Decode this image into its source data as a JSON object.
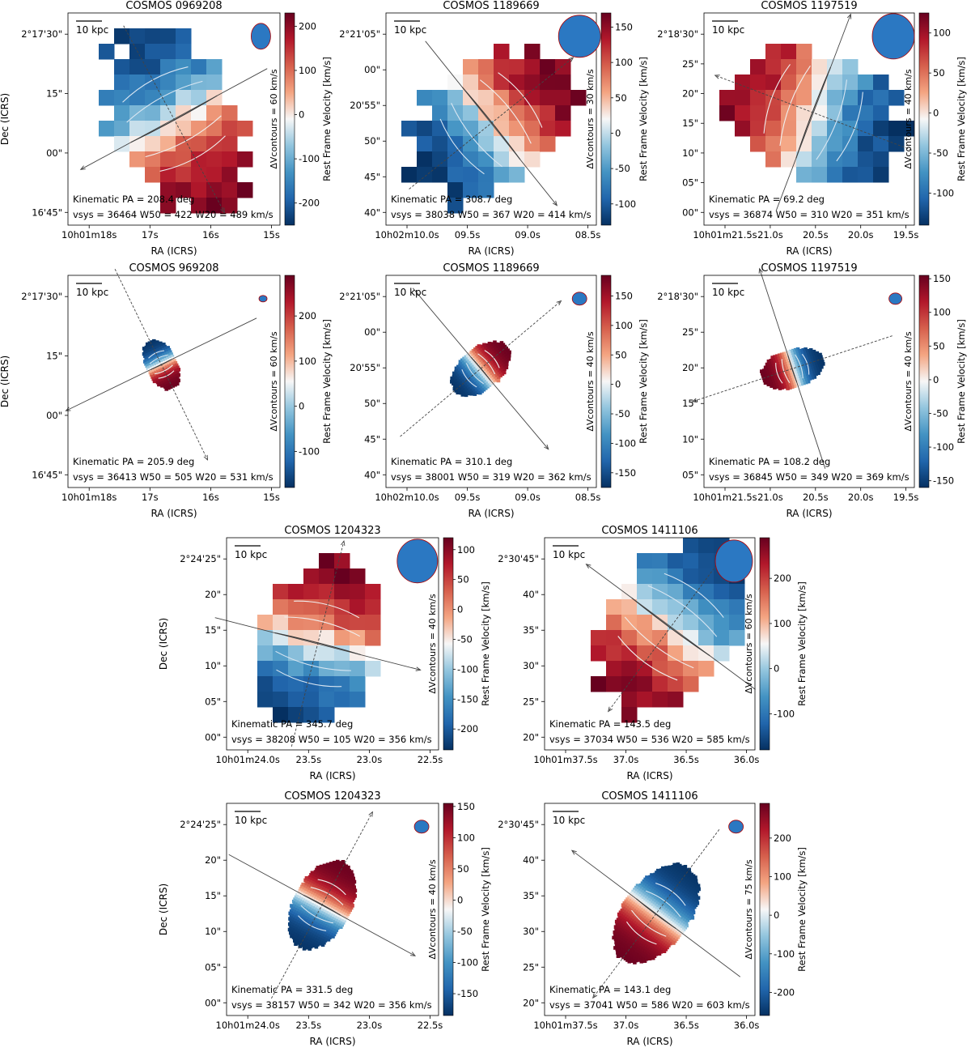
{
  "figure": {
    "colors": {
      "map_low": "#08306b",
      "map_mid": "#f7f7f7",
      "map_high": "#67001f",
      "beam": "#2b78c2",
      "beam_edge": "#b00000"
    },
    "ylabel": "Dec (ICRS)",
    "xlabel": "RA (ICRS)",
    "cbar_label": "Rest Frame Velocity [km/s]",
    "scalebar_label": "10 kpc"
  },
  "chart_data": [
    {
      "type": "heatmap",
      "title": "COSMOS 0969208",
      "kind": "pixel",
      "yticks": [
        "2°17'30\"",
        "15\"",
        "00\"",
        "16'45\""
      ],
      "xticks": [
        "10h01m18s",
        "17s",
        "16s",
        "15s"
      ],
      "cbar_ticks": [
        200,
        100,
        0,
        -100,
        -200
      ],
      "vmin": -250,
      "vmax": 230,
      "contour_label": "ΔVcontours = 60 km/s",
      "pa_label": "Kinematic PA = 208.4 deg",
      "stats_label": "vsys = 36464  W50 = 422  W20 = 489 km/s",
      "kinematic_pa_deg": 208.4,
      "v_sys_kms": 36464,
      "w50_kms": 422,
      "w20_kms": 489
    },
    {
      "type": "heatmap",
      "title": "COSMOS 1189669",
      "kind": "pixel",
      "yticks": [
        "2°21'05\"",
        "00\"",
        "20'55\"",
        "50\"",
        "45\"",
        "40\""
      ],
      "xticks": [
        "10h02m10.0s",
        "09.5s",
        "09.0s",
        "08.5s"
      ],
      "cbar_ticks": [
        150,
        100,
        50,
        0,
        -50,
        -100
      ],
      "vmin": -130,
      "vmax": 170,
      "contour_label": "ΔVcontours = 30 km/s",
      "pa_label": "Kinematic PA = 308.7 deg",
      "stats_label": "vsys = 38038  W50 = 367  W20 = 414 km/s",
      "kinematic_pa_deg": 308.7,
      "v_sys_kms": 38038,
      "w50_kms": 367,
      "w20_kms": 414
    },
    {
      "type": "heatmap",
      "title": "COSMOS 1197519",
      "kind": "pixel",
      "yticks": [
        "2°18'30\"",
        "25\"",
        "20\"",
        "15\"",
        "10\"",
        "05\"",
        "00\""
      ],
      "xticks": [
        "10h01m21.5s",
        "21.0s",
        "20.5s",
        "20.0s",
        "19.5s"
      ],
      "cbar_ticks": [
        100,
        50,
        0,
        -50,
        -100
      ],
      "vmin": -140,
      "vmax": 125,
      "contour_label": "ΔVcontours = 40 km/s",
      "pa_label": "Kinematic PA =  69.2 deg",
      "stats_label": "vsys = 36874  W50 = 310  W20 = 351 km/s",
      "kinematic_pa_deg": 69.2,
      "v_sys_kms": 36874,
      "w50_kms": 310,
      "w20_kms": 351
    },
    {
      "type": "heatmap",
      "title": "COSMOS 969208",
      "kind": "smooth",
      "yticks": [
        "2°17'30\"",
        "15\"",
        "00\"",
        "16'45\""
      ],
      "xticks": [
        "10h01m18s",
        "17s",
        "16s",
        "15s"
      ],
      "cbar_ticks": [
        200,
        100,
        0,
        -100
      ],
      "vmin": -180,
      "vmax": 290,
      "contour_label": "ΔVcontours = 60 km/s",
      "pa_label": "Kinematic PA = 205.9 deg",
      "stats_label": "vsys = 36413  W50 = 505  W20 = 531 km/s",
      "kinematic_pa_deg": 205.9,
      "v_sys_kms": 36413,
      "w50_kms": 505,
      "w20_kms": 531
    },
    {
      "type": "heatmap",
      "title": "COSMOS 1189669",
      "kind": "smooth",
      "yticks": [
        "2°21'05\"",
        "00\"",
        "20'55\"",
        "50\"",
        "45\"",
        "40\""
      ],
      "xticks": [
        "10h02m10.0s",
        "09.5s",
        "09.0s",
        "08.5s"
      ],
      "cbar_ticks": [
        150,
        100,
        50,
        0,
        -50,
        -100,
        -150
      ],
      "vmin": -175,
      "vmax": 185,
      "contour_label": "ΔVcontours = 40 km/s",
      "pa_label": "Kinematic PA = 310.1 deg",
      "stats_label": "vsys = 38001  W50 = 319  W20 = 362 km/s",
      "kinematic_pa_deg": 310.1,
      "v_sys_kms": 38001,
      "w50_kms": 319,
      "w20_kms": 362
    },
    {
      "type": "heatmap",
      "title": "COSMOS 1197519",
      "kind": "smooth",
      "yticks": [
        "2°18'30\"",
        "25\"",
        "20\"",
        "15\"",
        "10\"",
        "05\""
      ],
      "xticks": [
        "10h01m21.5s",
        "21.0s",
        "20.5s",
        "20.0s",
        "19.5s"
      ],
      "cbar_ticks": [
        150,
        100,
        50,
        0,
        -50,
        -100,
        -150
      ],
      "vmin": -160,
      "vmax": 155,
      "contour_label": "ΔVcontours = 40 km/s",
      "pa_label": "Kinematic PA = 108.2 deg",
      "stats_label": "vsys = 36845  W50 = 349  W20 = 369 km/s",
      "kinematic_pa_deg": 108.2,
      "v_sys_kms": 36845,
      "w50_kms": 349,
      "w20_kms": 369
    },
    {
      "type": "heatmap",
      "title": "COSMOS 1204323",
      "kind": "pixel",
      "yticks": [
        "2°24'25\"",
        "20\"",
        "15\"",
        "10\"",
        "05\"",
        "00\""
      ],
      "xticks": [
        "10h01m24.0s",
        "23.5s",
        "23.0s",
        "22.5s"
      ],
      "cbar_ticks": [
        100,
        50,
        0,
        -50,
        -100,
        -150,
        -200
      ],
      "vmin": -235,
      "vmax": 120,
      "contour_label": "ΔVcontours = 40 km/s",
      "pa_label": "Kinematic PA = 345.7 deg",
      "stats_label": "vsys = 38208  W50 = 105  W20 = 356 km/s",
      "kinematic_pa_deg": 345.7,
      "v_sys_kms": 38208,
      "w50_kms": 105,
      "w20_kms": 356
    },
    {
      "type": "heatmap",
      "title": "COSMOS 1411106",
      "kind": "pixel",
      "yticks": [
        "2°30'45\"",
        "40\"",
        "35\"",
        "30\"",
        "25\"",
        "20\""
      ],
      "xticks": [
        "10h01m37.5s",
        "37.0s",
        "36.5s",
        "36.0s"
      ],
      "cbar_ticks": [
        200,
        100,
        0,
        -100
      ],
      "vmin": -180,
      "vmax": 290,
      "contour_label": "ΔVcontours = 60 km/s",
      "pa_label": "Kinematic PA = 143.5 deg",
      "stats_label": "vsys = 37034  W50 = 536  W20 = 585 km/s",
      "kinematic_pa_deg": 143.5,
      "v_sys_kms": 37034,
      "w50_kms": 536,
      "w20_kms": 585
    },
    {
      "type": "heatmap",
      "title": "COSMOS 1204323",
      "kind": "smooth",
      "yticks": [
        "2°24'25\"",
        "20\"",
        "15\"",
        "10\"",
        "05\"",
        "00\""
      ],
      "xticks": [
        "10h01m24.0s",
        "23.5s",
        "23.0s",
        "22.5s"
      ],
      "cbar_ticks": [
        150,
        100,
        50,
        0,
        -50,
        -100,
        -150
      ],
      "vmin": -185,
      "vmax": 155,
      "contour_label": "ΔVcontours = 40 km/s",
      "pa_label": "Kinematic PA = 331.5 deg",
      "stats_label": "vsys = 38157  W50 = 342  W20 = 356 km/s",
      "kinematic_pa_deg": 331.5,
      "v_sys_kms": 38157,
      "w50_kms": 342,
      "w20_kms": 356
    },
    {
      "type": "heatmap",
      "title": "COSMOS 1411106",
      "kind": "smooth",
      "yticks": [
        "2°30'45\"",
        "40\"",
        "35\"",
        "30\"",
        "25\"",
        "20\""
      ],
      "xticks": [
        "10h01m37.5s",
        "37.0s",
        "36.5s",
        "36.0s"
      ],
      "cbar_ticks": [
        200,
        100,
        0,
        -100,
        -200
      ],
      "vmin": -260,
      "vmax": 290,
      "contour_label": "ΔVcontours = 75 km/s",
      "pa_label": "Kinematic PA = 143.1 deg",
      "stats_label": "vsys = 37041  W50 = 586  W20 = 603 km/s",
      "kinematic_pa_deg": 143.1,
      "v_sys_kms": 37041,
      "w50_kms": 586,
      "w20_kms": 603
    }
  ]
}
